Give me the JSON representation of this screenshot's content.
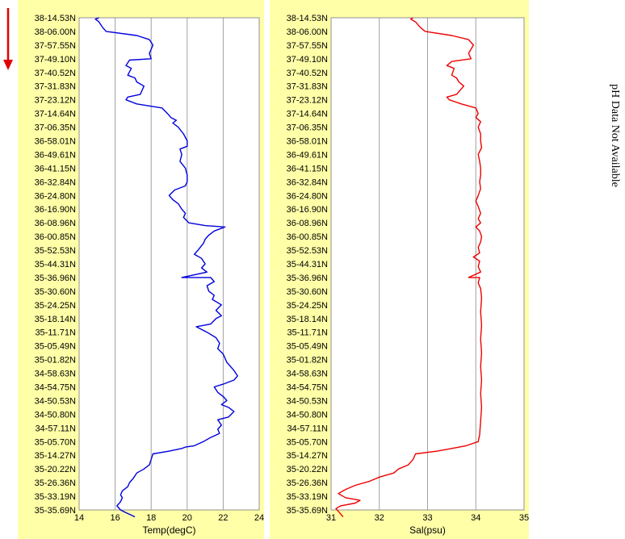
{
  "arrow_color": "#e00000",
  "note": "pH Data Not Available",
  "panel_bg": "#ffffa8",
  "plot_bg": "#ffffff",
  "chart_data": [
    {
      "type": "line",
      "title": "",
      "xlabel": "Temp(degC)",
      "ylabel": "",
      "xlim": [
        14,
        24
      ],
      "x_ticks": [
        14,
        16,
        18,
        20,
        22,
        24
      ],
      "grid": true,
      "y_categories": [
        "38-14.53N",
        "38-06.00N",
        "37-57.55N",
        "37-49.10N",
        "37-40.52N",
        "37-31.83N",
        "37-23.12N",
        "37-14.64N",
        "37-06.35N",
        "36-58.01N",
        "36-49.61N",
        "36-41.15N",
        "36-32.84N",
        "36-24.80N",
        "36-16.90N",
        "36-08.96N",
        "36-00.85N",
        "35-52.53N",
        "35-44.31N",
        "35-36.96N",
        "35-30.60N",
        "35-24.25N",
        "35-18.14N",
        "35-11.71N",
        "35-05.49N",
        "35-01.82N",
        "34-58.63N",
        "34-54.75N",
        "34-50.53N",
        "34-50.80N",
        "34-57.11N",
        "35-05.70N",
        "35-14.27N",
        "35-20.22N",
        "35-26.36N",
        "35-33.19N",
        "35-35.69N"
      ],
      "series": [
        {
          "color": "#0000dd",
          "points": [
            [
              15.1,
              0
            ],
            [
              14.9,
              0.1
            ],
            [
              15.1,
              0.3
            ],
            [
              15.3,
              0.7
            ],
            [
              15.5,
              1.0
            ],
            [
              17.2,
              1.3
            ],
            [
              17.9,
              1.6
            ],
            [
              18.1,
              2.0
            ],
            [
              17.9,
              2.6
            ],
            [
              18.0,
              3.0
            ],
            [
              16.8,
              3.1
            ],
            [
              16.6,
              3.5
            ],
            [
              16.9,
              3.7
            ],
            [
              16.7,
              4.2
            ],
            [
              17.1,
              4.4
            ],
            [
              17.2,
              4.7
            ],
            [
              17.6,
              5.0
            ],
            [
              17.4,
              5.6
            ],
            [
              16.7,
              5.8
            ],
            [
              16.6,
              6.0
            ],
            [
              17.2,
              6.3
            ],
            [
              18.6,
              6.6
            ],
            [
              18.9,
              7.0
            ],
            [
              19.1,
              7.3
            ],
            [
              19.4,
              7.5
            ],
            [
              19.2,
              7.7
            ],
            [
              19.5,
              8.0
            ],
            [
              19.8,
              8.5
            ],
            [
              20.0,
              9.0
            ],
            [
              20.0,
              9.4
            ],
            [
              19.6,
              9.6
            ],
            [
              19.7,
              10.0
            ],
            [
              19.6,
              10.5
            ],
            [
              19.9,
              11.0
            ],
            [
              20.0,
              11.5
            ],
            [
              20.0,
              12.0
            ],
            [
              19.9,
              12.3
            ],
            [
              19.3,
              12.6
            ],
            [
              19.0,
              13.0
            ],
            [
              19.2,
              13.3
            ],
            [
              19.5,
              13.6
            ],
            [
              19.7,
              14.0
            ],
            [
              19.9,
              14.3
            ],
            [
              19.8,
              14.6
            ],
            [
              20.1,
              15.0
            ],
            [
              21.0,
              15.2
            ],
            [
              22.1,
              15.3
            ],
            [
              21.5,
              15.6
            ],
            [
              21.2,
              15.9
            ],
            [
              21.0,
              16.2
            ],
            [
              20.9,
              16.5
            ],
            [
              20.6,
              17.0
            ],
            [
              20.4,
              17.3
            ],
            [
              20.8,
              17.6
            ],
            [
              21.0,
              18.0
            ],
            [
              20.8,
              18.3
            ],
            [
              21.1,
              18.6
            ],
            [
              19.7,
              19.0
            ],
            [
              21.3,
              19.0
            ],
            [
              21.5,
              19.3
            ],
            [
              21.1,
              19.6
            ],
            [
              21.2,
              20.0
            ],
            [
              21.5,
              20.3
            ],
            [
              21.4,
              20.6
            ],
            [
              21.9,
              21.0
            ],
            [
              21.6,
              21.4
            ],
            [
              21.9,
              21.8
            ],
            [
              21.6,
              22.0
            ],
            [
              21.3,
              22.4
            ],
            [
              20.5,
              22.6
            ],
            [
              21.1,
              23.0
            ],
            [
              21.6,
              23.4
            ],
            [
              21.8,
              23.8
            ],
            [
              21.7,
              24.2
            ],
            [
              22.0,
              24.6
            ],
            [
              22.2,
              25.2
            ],
            [
              22.6,
              25.8
            ],
            [
              22.8,
              26.2
            ],
            [
              22.6,
              26.5
            ],
            [
              22.0,
              26.8
            ],
            [
              21.5,
              27.0
            ],
            [
              21.7,
              27.4
            ],
            [
              22.0,
              27.7
            ],
            [
              22.2,
              28.0
            ],
            [
              21.9,
              28.3
            ],
            [
              22.3,
              28.5
            ],
            [
              22.6,
              28.8
            ],
            [
              22.3,
              29.2
            ],
            [
              21.7,
              29.4
            ],
            [
              21.9,
              29.8
            ],
            [
              21.7,
              30.1
            ],
            [
              21.8,
              30.4
            ],
            [
              21.3,
              30.7
            ],
            [
              20.9,
              31.0
            ],
            [
              20.4,
              31.3
            ],
            [
              19.9,
              31.4
            ],
            [
              19.7,
              31.5
            ],
            [
              19.0,
              31.7
            ],
            [
              18.1,
              31.9
            ],
            [
              18.0,
              32.3
            ],
            [
              17.9,
              32.7
            ],
            [
              17.6,
              33.0
            ],
            [
              17.2,
              33.3
            ],
            [
              17.0,
              33.7
            ],
            [
              16.8,
              34.0
            ],
            [
              16.7,
              34.3
            ],
            [
              16.4,
              34.6
            ],
            [
              16.3,
              34.9
            ],
            [
              16.4,
              35.1
            ],
            [
              16.3,
              35.4
            ],
            [
              16.1,
              35.7
            ],
            [
              16.3,
              36.0
            ],
            [
              16.6,
              36.2
            ],
            [
              17.1,
              36.5
            ]
          ]
        }
      ]
    },
    {
      "type": "line",
      "title": "",
      "xlabel": "Sal(psu)",
      "ylabel": "",
      "xlim": [
        31,
        35
      ],
      "x_ticks": [
        31,
        32,
        33,
        34,
        35
      ],
      "grid": true,
      "y_categories": [
        "38-14.53N",
        "38-06.00N",
        "37-57.55N",
        "37-49.10N",
        "37-40.52N",
        "37-31.83N",
        "37-23.12N",
        "37-14.64N",
        "37-06.35N",
        "36-58.01N",
        "36-49.61N",
        "36-41.15N",
        "36-32.84N",
        "36-24.80N",
        "36-16.90N",
        "36-08.96N",
        "36-00.85N",
        "35-52.53N",
        "35-44.31N",
        "35-36.96N",
        "35-30.60N",
        "35-24.25N",
        "35-18.14N",
        "35-11.71N",
        "35-05.49N",
        "35-01.82N",
        "34-58.63N",
        "34-54.75N",
        "34-50.53N",
        "34-50.80N",
        "34-57.11N",
        "35-05.70N",
        "35-14.27N",
        "35-20.22N",
        "35-26.36N",
        "35-33.19N",
        "35-35.69N"
      ],
      "series": [
        {
          "color": "#ee0000",
          "points": [
            [
              32.7,
              0
            ],
            [
              32.65,
              0.1
            ],
            [
              32.75,
              0.3
            ],
            [
              32.85,
              0.7
            ],
            [
              32.95,
              1.0
            ],
            [
              33.5,
              1.3
            ],
            [
              33.85,
              1.6
            ],
            [
              33.95,
              2.0
            ],
            [
              33.85,
              2.6
            ],
            [
              33.9,
              3.0
            ],
            [
              33.5,
              3.2
            ],
            [
              33.4,
              3.5
            ],
            [
              33.55,
              3.7
            ],
            [
              33.5,
              4.2
            ],
            [
              33.6,
              4.4
            ],
            [
              33.65,
              4.7
            ],
            [
              33.75,
              5.0
            ],
            [
              33.6,
              5.6
            ],
            [
              33.4,
              5.8
            ],
            [
              33.45,
              6.0
            ],
            [
              33.7,
              6.3
            ],
            [
              34.0,
              6.6
            ],
            [
              34.05,
              7.0
            ],
            [
              34.0,
              7.3
            ],
            [
              34.1,
              7.6
            ],
            [
              34.05,
              8.0
            ],
            [
              34.1,
              8.5
            ],
            [
              34.1,
              9.0
            ],
            [
              34.12,
              9.5
            ],
            [
              34.05,
              10.0
            ],
            [
              34.08,
              10.5
            ],
            [
              34.1,
              11.0
            ],
            [
              34.1,
              11.5
            ],
            [
              34.08,
              12.0
            ],
            [
              34.1,
              12.5
            ],
            [
              34.05,
              13.0
            ],
            [
              34.0,
              13.4
            ],
            [
              34.05,
              13.8
            ],
            [
              34.1,
              14.3
            ],
            [
              34.05,
              14.7
            ],
            [
              34.1,
              15.0
            ],
            [
              34.0,
              15.3
            ],
            [
              34.08,
              15.6
            ],
            [
              34.12,
              16.0
            ],
            [
              34.1,
              16.4
            ],
            [
              34.05,
              16.8
            ],
            [
              34.08,
              17.2
            ],
            [
              33.95,
              17.5
            ],
            [
              34.08,
              17.8
            ],
            [
              34.05,
              18.2
            ],
            [
              34.1,
              18.6
            ],
            [
              33.85,
              19.0
            ],
            [
              34.08,
              19.0
            ],
            [
              34.05,
              19.4
            ],
            [
              34.1,
              19.8
            ],
            [
              34.12,
              20.5
            ],
            [
              34.1,
              21.5
            ],
            [
              34.12,
              22.5
            ],
            [
              34.1,
              23.5
            ],
            [
              34.12,
              24.5
            ],
            [
              34.1,
              25.5
            ],
            [
              34.12,
              26.5
            ],
            [
              34.1,
              27.5
            ],
            [
              34.12,
              28.5
            ],
            [
              34.1,
              29.5
            ],
            [
              34.08,
              30.5
            ],
            [
              34.05,
              31.0
            ],
            [
              33.8,
              31.3
            ],
            [
              33.5,
              31.5
            ],
            [
              33.2,
              31.7
            ],
            [
              32.75,
              31.9
            ],
            [
              32.7,
              32.3
            ],
            [
              32.6,
              32.7
            ],
            [
              32.4,
              33.0
            ],
            [
              32.3,
              33.3
            ],
            [
              32.0,
              33.6
            ],
            [
              31.8,
              33.9
            ],
            [
              31.5,
              34.2
            ],
            [
              31.3,
              34.5
            ],
            [
              31.15,
              34.8
            ],
            [
              31.3,
              35.1
            ],
            [
              31.6,
              35.3
            ],
            [
              31.5,
              35.5
            ],
            [
              31.2,
              35.7
            ],
            [
              31.1,
              35.9
            ],
            [
              31.15,
              36.1
            ],
            [
              31.2,
              36.3
            ],
            [
              31.25,
              36.5
            ]
          ]
        }
      ]
    }
  ]
}
